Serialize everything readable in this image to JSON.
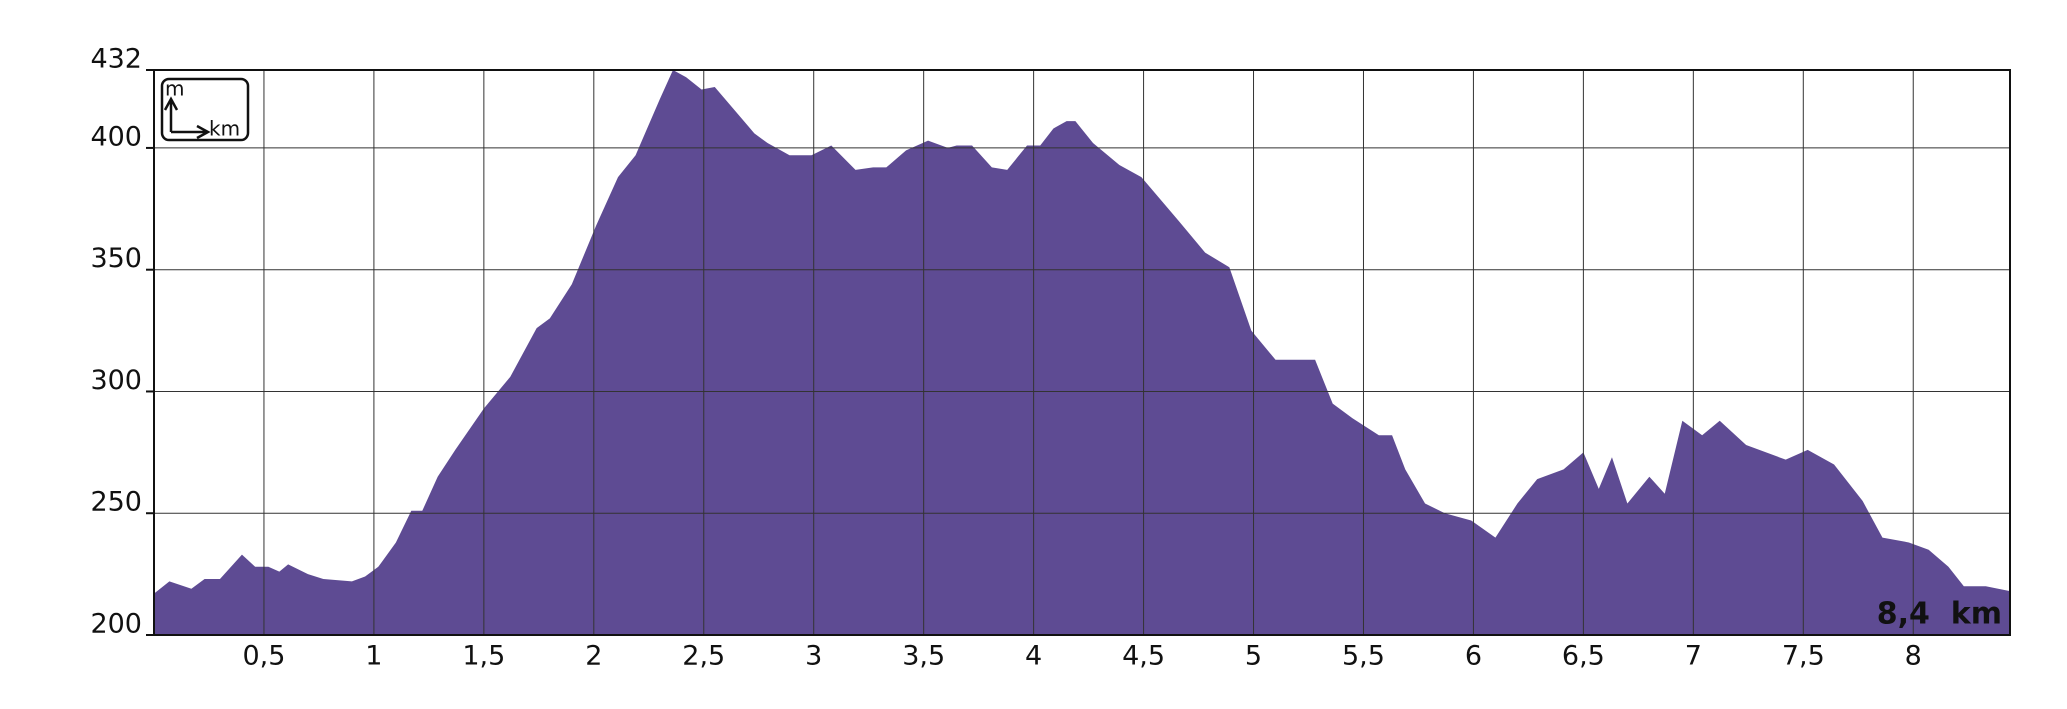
{
  "chart_data": {
    "type": "area",
    "x": [
      0,
      0.07,
      0.17,
      0.23,
      0.3,
      0.4,
      0.46,
      0.52,
      0.57,
      0.61,
      0.7,
      0.77,
      0.9,
      0.96,
      1.02,
      1.1,
      1.17,
      1.22,
      1.29,
      1.37,
      1.5,
      1.62,
      1.74,
      1.8,
      1.9,
      2.01,
      2.11,
      2.19,
      2.3,
      2.36,
      2.42,
      2.49,
      2.55,
      2.73,
      2.79,
      2.89,
      2.99,
      3.08,
      3.19,
      3.27,
      3.33,
      3.42,
      3.52,
      3.61,
      3.65,
      3.72,
      3.81,
      3.88,
      3.97,
      4.03,
      4.09,
      4.15,
      4.19,
      4.27,
      4.39,
      4.49,
      4.66,
      4.78,
      4.89,
      4.99,
      5.1,
      5.19,
      5.28,
      5.36,
      5.45,
      5.57,
      5.63,
      5.69,
      5.78,
      5.87,
      5.99,
      6.1,
      6.2,
      6.29,
      6.41,
      6.5,
      6.57,
      6.63,
      6.7,
      6.8,
      6.87,
      6.95,
      7.04,
      7.12,
      7.24,
      7.42,
      7.52,
      7.64,
      7.77,
      7.86,
      7.98,
      8.07,
      8.16,
      8.23,
      8.33,
      8.44
    ],
    "series": [
      {
        "color": "#5e4b93",
        "values": [
          217,
          222,
          219,
          223,
          223,
          233,
          228,
          228,
          226,
          229,
          225,
          223,
          222,
          224,
          228,
          238,
          251,
          251,
          265,
          276,
          293,
          306,
          326,
          330,
          344,
          368,
          388,
          397,
          420,
          432,
          429,
          424,
          425,
          406,
          402,
          397,
          397,
          401,
          391,
          392,
          392,
          399,
          403,
          400,
          401,
          401,
          392,
          391,
          401,
          401,
          408,
          411,
          411,
          402,
          393,
          388,
          370,
          357,
          351,
          325,
          313,
          313,
          313,
          295,
          289,
          282,
          282,
          268,
          254,
          250,
          247,
          240,
          254,
          264,
          268,
          275,
          260,
          273,
          254,
          265,
          258,
          288,
          282,
          288,
          278,
          272,
          276,
          270,
          255,
          240,
          238,
          235,
          228,
          220,
          220,
          218
        ]
      }
    ],
    "xlim": [
      0,
      8.44
    ],
    "xticks": [
      {
        "value": 0.5,
        "label": "0,5"
      },
      1,
      {
        "value": 1.5,
        "label": "1,5"
      },
      2,
      {
        "value": 2.5,
        "label": "2,5"
      },
      3,
      {
        "value": 3.5,
        "label": "3,5"
      },
      4,
      {
        "value": 4.5,
        "label": "4,5"
      },
      5,
      {
        "value": 5.5,
        "label": "5,5"
      },
      6,
      {
        "value": 6.5,
        "label": "6,5"
      },
      7,
      {
        "value": 7.5,
        "label": "7,5"
      },
      8
    ],
    "ylim": [
      200,
      432
    ],
    "yticks": [
      200,
      250,
      300,
      350,
      400,
      432
    ],
    "grid": true,
    "legend_icon": {
      "y_unit": "m",
      "x_unit": "km"
    },
    "total_label": "8,4  km"
  }
}
